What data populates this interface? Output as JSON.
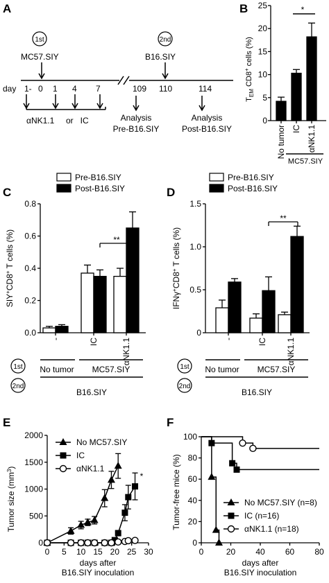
{
  "panel_labels": [
    "A",
    "B",
    "C",
    "D",
    "E",
    "F"
  ],
  "panel_a": {
    "first_mark": "1st",
    "second_mark": "2nd",
    "first_label": "MC57.SIY",
    "second_label": "B16.SIY",
    "day_label": "day",
    "days": [
      "1-",
      "0",
      "1",
      "4",
      "7",
      "109",
      "110",
      "114"
    ],
    "treatment_text": "αNK1.1     or   IC",
    "analysis_1": "Analysis",
    "analysis_1_sub": "Pre-B16.SIY",
    "analysis_2": "Analysis",
    "analysis_2_sub": "Post-B16.SIY"
  },
  "panel_b": {
    "ylabel": "T_EM CD8+ cells (%)",
    "star": "*",
    "group_label": "MC57.SIY"
  },
  "row_labels": {
    "first": "1st",
    "second": "2nd",
    "no_tumor": "No tumor",
    "mc57": "MC57.SIY",
    "b16": "B16.SIY"
  },
  "chart_data": [
    {
      "panel": "B",
      "type": "bar",
      "categories": [
        "No tumor",
        "IC",
        "αNK1.1"
      ],
      "values": [
        4.2,
        10.3,
        18.2
      ],
      "errors": [
        0.9,
        0.8,
        3.0
      ],
      "ylabel": "TEM CD8+ cells (%)",
      "ylim": [
        0,
        25
      ],
      "yticks": [
        "0",
        "5",
        "10",
        "15",
        "20",
        "25"
      ]
    },
    {
      "panel": "C",
      "type": "bar",
      "categories": [
        "-",
        "IC",
        "αNK1.1"
      ],
      "series": [
        {
          "name": "Pre-B16.SIY",
          "values": [
            0.03,
            0.37,
            0.35
          ],
          "errors": [
            0.01,
            0.05,
            0.05
          ]
        },
        {
          "name": "Post-B16.SIY",
          "values": [
            0.04,
            0.35,
            0.65
          ],
          "errors": [
            0.01,
            0.04,
            0.1
          ]
        }
      ],
      "ylabel": "SIY+CD8+ T cells (%)",
      "ylim": [
        0,
        0.8
      ],
      "yticks": [
        "0.0",
        "0.2",
        "0.4",
        "0.6",
        "0.8"
      ],
      "annotation": "**"
    },
    {
      "panel": "D",
      "type": "bar",
      "categories": [
        "-",
        "IC",
        "αNK1.1"
      ],
      "series": [
        {
          "name": "Pre-B16.SIY",
          "values": [
            0.29,
            0.17,
            0.21
          ],
          "errors": [
            0.09,
            0.05,
            0.03
          ]
        },
        {
          "name": "Post-B16.SIY",
          "values": [
            0.59,
            0.49,
            1.12
          ],
          "errors": [
            0.04,
            0.16,
            0.12
          ]
        }
      ],
      "ylabel": "IFNγ+CD8+ T cells (%)",
      "ylim": [
        0,
        1.5
      ],
      "yticks": [
        "0",
        "0.5",
        "1.0",
        "1.5"
      ],
      "annotation": "**"
    },
    {
      "panel": "E",
      "type": "line",
      "xlabel": "days after",
      "xlabel2": "B16.SIY inoculation",
      "ylabel": "Tumor size (mm3)",
      "xlim": [
        0,
        30
      ],
      "ylim": [
        0,
        2000
      ],
      "xticks": [
        "0",
        "5",
        "10",
        "15",
        "20",
        "25",
        "30"
      ],
      "yticks": [
        "0",
        "500",
        "1000",
        "1500",
        "2000"
      ],
      "annotation": "*",
      "series": [
        {
          "name": "No MC57.SIY",
          "marker": "triangle",
          "x": [
            0,
            7,
            10,
            12,
            14,
            17,
            19,
            21
          ],
          "y": [
            0,
            220,
            330,
            380,
            420,
            830,
            1170,
            1430
          ],
          "err": [
            0,
            60,
            70,
            60,
            70,
            160,
            160,
            230
          ]
        },
        {
          "name": "IC",
          "marker": "square",
          "x": [
            0,
            7,
            10,
            12,
            14,
            17,
            19,
            20,
            21,
            23,
            24,
            26
          ],
          "y": [
            0,
            0,
            0,
            0,
            0,
            0,
            0,
            50,
            180,
            560,
            850,
            1050
          ],
          "err": [
            0,
            0,
            0,
            0,
            0,
            0,
            0,
            20,
            50,
            150,
            220,
            250
          ]
        },
        {
          "name": "αNK1.1",
          "marker": "circle",
          "x": [
            0,
            7,
            10,
            12,
            14,
            17,
            19,
            21,
            23,
            24,
            26
          ],
          "y": [
            0,
            0,
            0,
            0,
            0,
            0,
            0,
            15,
            25,
            40,
            45
          ],
          "err": [
            0,
            0,
            0,
            0,
            0,
            0,
            0,
            10,
            15,
            20,
            20
          ]
        }
      ]
    },
    {
      "panel": "F",
      "type": "line",
      "xlabel": "days after",
      "xlabel2": "B16.SIY inoculation",
      "ylabel": "Tumor-free mice (%)",
      "xlim": [
        0,
        80
      ],
      "ylim": [
        0,
        100
      ],
      "xticks": [
        "0",
        "20",
        "40",
        "60",
        "80"
      ],
      "yticks": [
        "0",
        "20",
        "40",
        "60",
        "80",
        "100"
      ],
      "series": [
        {
          "name": "No MC57.SIY (n=8)",
          "marker": "triangle",
          "x": [
            0,
            7,
            7,
            10,
            10,
            12,
            12
          ],
          "y": [
            100,
            100,
            62,
            62,
            12,
            12,
            0
          ]
        },
        {
          "name": "IC (n=16)",
          "marker": "square",
          "x": [
            0,
            7,
            7,
            21,
            21,
            24,
            24,
            80
          ],
          "y": [
            100,
            100,
            94,
            94,
            75,
            75,
            69,
            69
          ]
        },
        {
          "name": "αNK1.1 (n=18)",
          "marker": "circle",
          "x": [
            0,
            28,
            28,
            35,
            35,
            80
          ],
          "y": [
            100,
            100,
            94,
            94,
            89,
            89
          ]
        }
      ]
    }
  ]
}
